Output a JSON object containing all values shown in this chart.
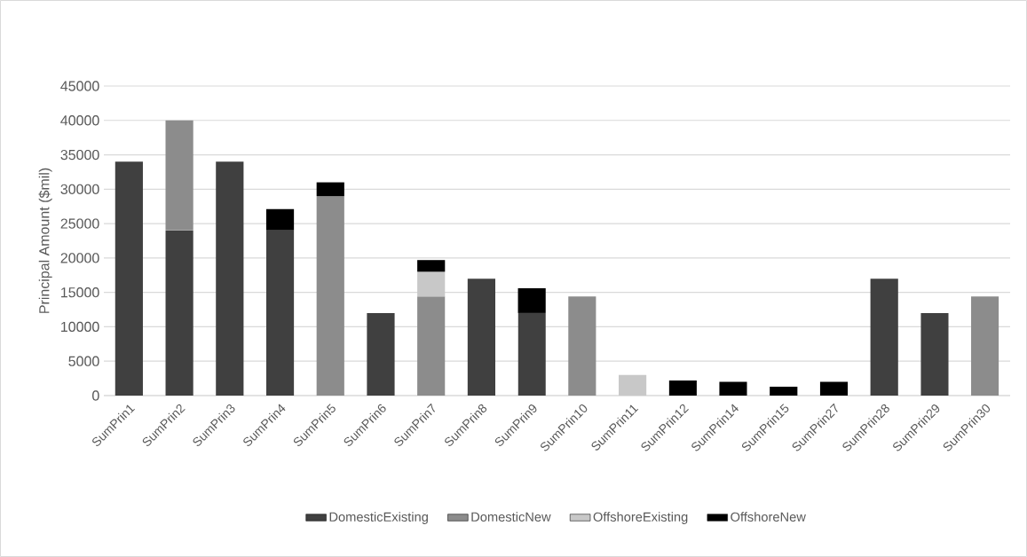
{
  "chart_data": {
    "type": "bar",
    "stacked": true,
    "ylabel": "Principal Amount ($mil)",
    "categories": [
      "SumPrin1",
      "SumPrin2",
      "SumPrin3",
      "SumPrin4",
      "SumPrin5",
      "SumPrin6",
      "SumPrin7",
      "SumPrin8",
      "SumPrin9",
      "SumPrin10",
      "SumPrin11",
      "SumPrin12",
      "SumPrin14",
      "SumPrin15",
      "SumPrin27",
      "SumPrin28",
      "SumPrin29",
      "SumPrin30"
    ],
    "series": [
      {
        "name": "DomesticExisting",
        "color": "#404040",
        "values": [
          34000,
          24000,
          34000,
          24000,
          null,
          12000,
          null,
          17000,
          12000,
          null,
          null,
          null,
          null,
          null,
          null,
          17000,
          12000,
          null
        ]
      },
      {
        "name": "DomesticNew",
        "color": "#8c8c8c",
        "values": [
          null,
          16000,
          null,
          null,
          29000,
          null,
          14400,
          null,
          null,
          14400,
          null,
          null,
          null,
          null,
          null,
          null,
          null,
          14400
        ]
      },
      {
        "name": "OffshoreExisting",
        "color": "#c8c8c8",
        "values": [
          null,
          null,
          null,
          null,
          null,
          null,
          3600,
          null,
          null,
          null,
          3000,
          null,
          null,
          null,
          null,
          null,
          null,
          null
        ]
      },
      {
        "name": "OffshoreNew",
        "color": "#000000",
        "values": [
          null,
          null,
          null,
          3100,
          2000,
          null,
          1700,
          null,
          3600,
          null,
          null,
          2200,
          2000,
          1300,
          2000,
          null,
          null,
          null
        ]
      }
    ],
    "ylim": [
      0,
      45000
    ],
    "yticks": [
      0,
      5000,
      10000,
      15000,
      20000,
      25000,
      30000,
      35000,
      40000,
      45000
    ],
    "grid": "y",
    "legend": "bottom"
  }
}
